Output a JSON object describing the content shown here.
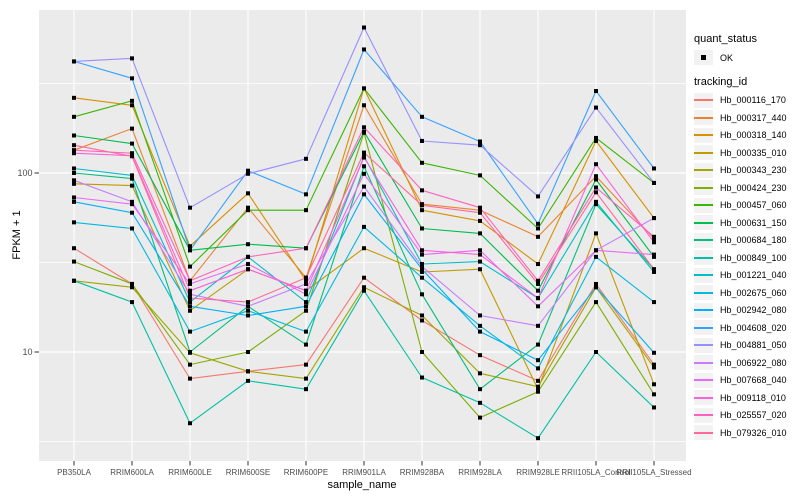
{
  "figure": {
    "background": "#FFFFFF",
    "panel_bg": "#EBEBEB",
    "grid_color": "#FFFFFF",
    "point_color": "#000000",
    "tick_color": "#333333",
    "tick_label_color": "#4D4D4D",
    "legend_key_bg": "#F2F2F2"
  },
  "chart_data": {
    "type": "line",
    "title": "",
    "xlabel": "sample_name",
    "ylabel": "FPKM + 1",
    "y_scale": "log10",
    "ylim": [
      2.3,
      820
    ],
    "y_ticks": [
      {
        "value": 100,
        "label": "100"
      },
      {
        "value": 10,
        "label": "10"
      }
    ],
    "y_minor_ticks": [
      316.2,
      31.62,
      3.162
    ],
    "grid": true,
    "legend_position": "right",
    "categories": [
      "PB350LA",
      "RRIM600LA",
      "RRIM600LE",
      "RRIM600SE",
      "RRIM600PE",
      "RRIM901LA",
      "RRIM928BA",
      "RRIM928LA",
      "RRIM928LE",
      "RRII105LA_Control",
      "RRII105LA_Stressed"
    ],
    "legend": {
      "quant_title": "quant_status",
      "quant_items": [
        {
          "label": "OK",
          "marker": "point"
        }
      ],
      "series_title": "tracking_id"
    },
    "series": [
      {
        "name": "Hb_000116_170",
        "color": "#F8766D",
        "values": [
          38,
          24,
          7.1,
          7.8,
          8.5,
          26,
          15,
          9.6,
          6.9,
          24,
          8.5
        ]
      },
      {
        "name": "Hb_000317_440",
        "color": "#EA8331",
        "values": [
          134,
          177,
          25,
          64,
          26,
          239,
          67,
          62,
          44,
          96,
          43
        ]
      },
      {
        "name": "Hb_000318_140",
        "color": "#D89000",
        "values": [
          263,
          239,
          39,
          77,
          25,
          297,
          62,
          54,
          31,
          151,
          56
        ]
      },
      {
        "name": "Hb_000335_010",
        "color": "#C09B00",
        "values": [
          87,
          85,
          17,
          29,
          22,
          38,
          28,
          29,
          6.2,
          46,
          6.6
        ]
      },
      {
        "name": "Hb_000343_230",
        "color": "#A3A500",
        "values": [
          25,
          23,
          9.9,
          7.8,
          7.1,
          23,
          16,
          7.6,
          6.4,
          23,
          8.2
        ]
      },
      {
        "name": "Hb_000424_230",
        "color": "#7CAE00",
        "values": [
          32,
          24,
          8.5,
          10,
          17,
          168,
          10,
          4.3,
          6.0,
          19,
          5.8
        ]
      },
      {
        "name": "Hb_000457_060",
        "color": "#39B600",
        "values": [
          206,
          253,
          30,
          62,
          62,
          297,
          114,
          97,
          49,
          157,
          88
        ]
      },
      {
        "name": "Hb_000631_150",
        "color": "#00BB4E",
        "values": [
          162,
          146,
          37,
          40,
          38,
          170,
          49,
          46,
          22,
          92,
          34
        ]
      },
      {
        "name": "Hb_000684_180",
        "color": "#00BF7D",
        "values": [
          100,
          93,
          10,
          18,
          11,
          109,
          21,
          6.2,
          11,
          67,
          29
        ]
      },
      {
        "name": "Hb_000849_100",
        "color": "#00C1A3",
        "values": [
          25,
          19,
          4.0,
          6.9,
          6.2,
          22,
          7.2,
          5.2,
          3.3,
          10,
          4.9
        ]
      },
      {
        "name": "Hb_001221_040",
        "color": "#00BFC4",
        "values": [
          106,
          97,
          19,
          34,
          19,
          124,
          31,
          32,
          20,
          69,
          28
        ]
      },
      {
        "name": "Hb_002675_060",
        "color": "#00BAE0",
        "values": [
          53,
          49,
          13,
          17,
          13,
          50,
          26,
          14,
          8.1,
          34,
          19
        ]
      },
      {
        "name": "Hb_002942_080",
        "color": "#00B0F6",
        "values": [
          69,
          60,
          18,
          16,
          18,
          76,
          29,
          13,
          9.0,
          23,
          9.9
        ]
      },
      {
        "name": "Hb_004608_020",
        "color": "#35A2FF",
        "values": [
          420,
          338,
          37,
          103,
          76,
          490,
          206,
          150,
          52,
          287,
          106
        ]
      },
      {
        "name": "Hb_004881_050",
        "color": "#9590FF",
        "values": [
          420,
          437,
          64,
          99,
          120,
          650,
          151,
          143,
          74,
          232,
          88
        ]
      },
      {
        "name": "Hb_006922_080",
        "color": "#C77CFF",
        "values": [
          91,
          69,
          21,
          18,
          24,
          84,
          30,
          16,
          14,
          37,
          56
        ]
      },
      {
        "name": "Hb_007668_040",
        "color": "#E76BF3",
        "values": [
          73,
          67,
          24,
          31,
          21,
          99,
          35,
          37,
          18,
          37,
          35
        ]
      },
      {
        "name": "Hb_009118_010",
        "color": "#FA62DB",
        "values": [
          129,
          125,
          22,
          29,
          22,
          122,
          37,
          35,
          20,
          112,
          41
        ]
      },
      {
        "name": "Hb_025557_020",
        "color": "#FF62BC",
        "values": [
          134,
          129,
          25,
          34,
          38,
          180,
          80,
          64,
          25,
          83,
          44
        ]
      },
      {
        "name": "Hb_079326_010",
        "color": "#FF6A98",
        "values": [
          143,
          124,
          20,
          19,
          26,
          130,
          66,
          60,
          24,
          78,
          29
        ]
      }
    ]
  }
}
